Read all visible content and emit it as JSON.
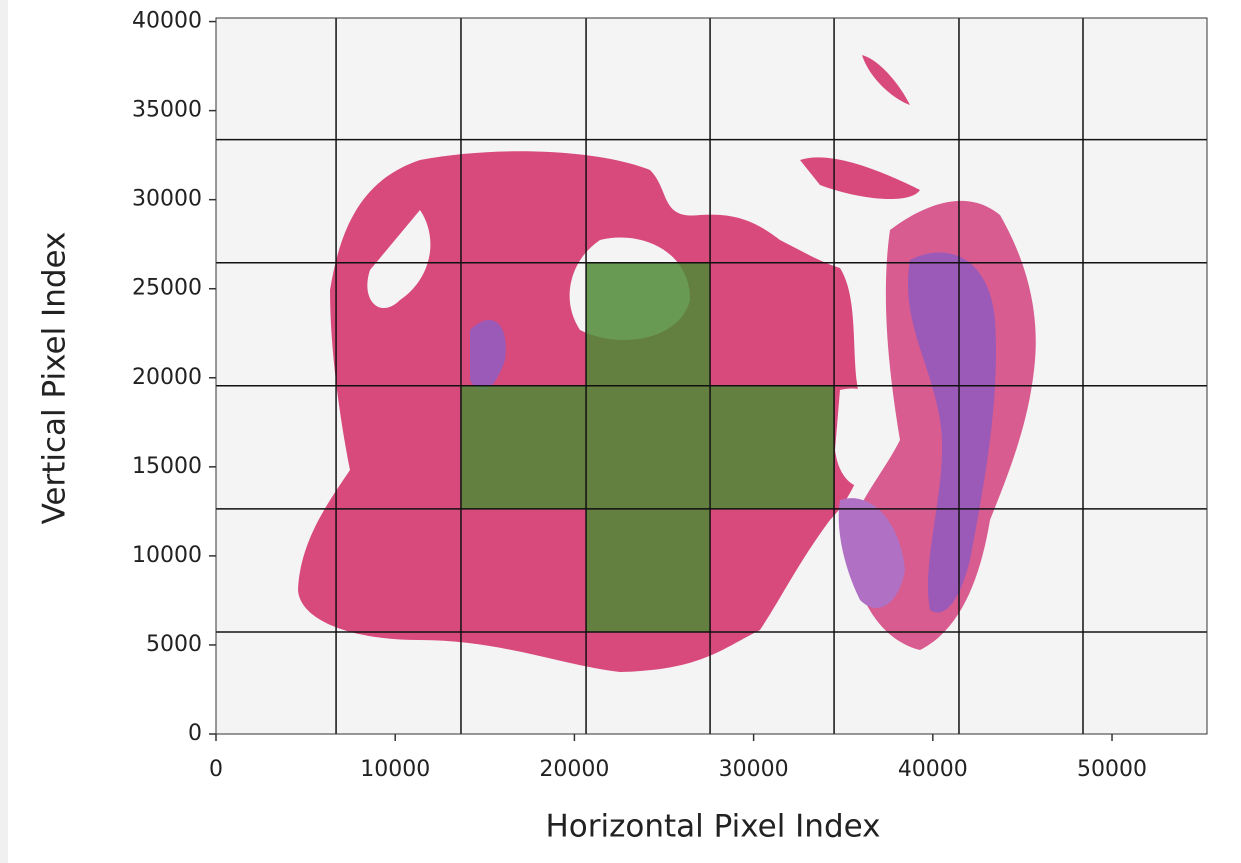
{
  "chart_data": {
    "type": "tilegrid",
    "xlabel": "Horizontal Pixel Index",
    "ylabel": "Vertical Pixel Index",
    "xlim": [
      0,
      55300
    ],
    "ylim": [
      0,
      40200
    ],
    "xticks": [
      0,
      10000,
      20000,
      30000,
      40000,
      50000
    ],
    "yticks": [
      0,
      5000,
      10000,
      15000,
      20000,
      25000,
      30000,
      35000,
      40000
    ],
    "grid_x": [
      6700,
      13670,
      20650,
      27570,
      34490,
      41460,
      48380
    ],
    "grid_y": [
      5730,
      12640,
      19550,
      26460,
      33370
    ],
    "grid_color": "#111111",
    "highlight": {
      "color": "#4f8a36",
      "opacity": 0.85,
      "tiles": [
        {
          "x": [
            20650,
            27570
          ],
          "y": [
            5730,
            12640
          ]
        },
        {
          "x": [
            13670,
            20650
          ],
          "y": [
            12640,
            19550
          ]
        },
        {
          "x": [
            20650,
            27570
          ],
          "y": [
            12640,
            19550
          ]
        },
        {
          "x": [
            27570,
            34490
          ],
          "y": [
            12640,
            19550
          ]
        },
        {
          "x": [
            20650,
            27570
          ],
          "y": [
            19550,
            26460
          ]
        }
      ]
    }
  }
}
